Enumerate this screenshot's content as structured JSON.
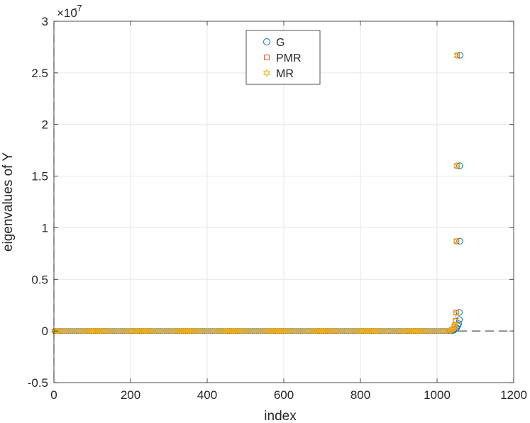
{
  "chart_data": {
    "type": "scatter",
    "xlabel": "index",
    "ylabel": "eigenvalues of Y",
    "xlim": [
      0,
      1200
    ],
    "ylim": [
      -0.5,
      3
    ],
    "y_exponent_label": "×10",
    "y_exponent_power": "-7",
    "x_ticks": [
      0,
      200,
      400,
      600,
      800,
      1000,
      1200
    ],
    "x_tick_labels": [
      "0",
      "200",
      "400",
      "600",
      "800",
      "1000",
      "1200"
    ],
    "y_ticks": [
      -0.5,
      0,
      0.5,
      1,
      1.5,
      2,
      2.5,
      3
    ],
    "y_tick_labels": [
      "-0.5",
      "0",
      "0.5",
      "1",
      "1.5",
      "2",
      "2.5",
      "3"
    ],
    "grid": true,
    "zero_line": "dashed",
    "legend_position": "top-center",
    "series": [
      {
        "name": "G",
        "marker": "circle",
        "color": "#0072BD",
        "bulk_x_range": [
          1,
          1036
        ],
        "bulk_y": 0,
        "points": [
          {
            "x": 1040,
            "y": 0.005
          },
          {
            "x": 1044,
            "y": 0.01
          },
          {
            "x": 1048,
            "y": 0.02
          },
          {
            "x": 1051,
            "y": 0.03
          },
          {
            "x": 1054,
            "y": 0.05
          },
          {
            "x": 1056,
            "y": 0.07
          },
          {
            "x": 1058,
            "y": 0.11
          },
          {
            "x": 1058,
            "y": 0.18
          },
          {
            "x": 1059,
            "y": 0.87
          },
          {
            "x": 1059,
            "y": 1.6
          },
          {
            "x": 1060,
            "y": 2.67
          }
        ]
      },
      {
        "name": "PMR",
        "marker": "square",
        "color": "#D95319",
        "bulk_x_range": [
          1,
          1030
        ],
        "bulk_y": 0,
        "points": [
          {
            "x": 1034,
            "y": 0.005
          },
          {
            "x": 1038,
            "y": 0.01
          },
          {
            "x": 1042,
            "y": 0.02
          },
          {
            "x": 1045,
            "y": 0.04
          },
          {
            "x": 1047,
            "y": 0.06
          },
          {
            "x": 1049,
            "y": 0.1
          },
          {
            "x": 1050,
            "y": 0.18
          },
          {
            "x": 1051,
            "y": 0.87
          },
          {
            "x": 1052,
            "y": 1.6
          },
          {
            "x": 1053,
            "y": 2.67
          }
        ]
      },
      {
        "name": "MR",
        "marker": "hexagram",
        "color": "#EDB120",
        "bulk_x_range": [
          1,
          1030
        ],
        "bulk_y": 0,
        "points": [
          {
            "x": 1033,
            "y": 0.005
          },
          {
            "x": 1037,
            "y": 0.01
          },
          {
            "x": 1041,
            "y": 0.02
          },
          {
            "x": 1044,
            "y": 0.04
          },
          {
            "x": 1046,
            "y": 0.06
          },
          {
            "x": 1048,
            "y": 0.1
          },
          {
            "x": 1049,
            "y": 0.17
          },
          {
            "x": 1050,
            "y": 0.87
          },
          {
            "x": 1051,
            "y": 1.6
          },
          {
            "x": 1052,
            "y": 2.67
          }
        ]
      }
    ]
  }
}
